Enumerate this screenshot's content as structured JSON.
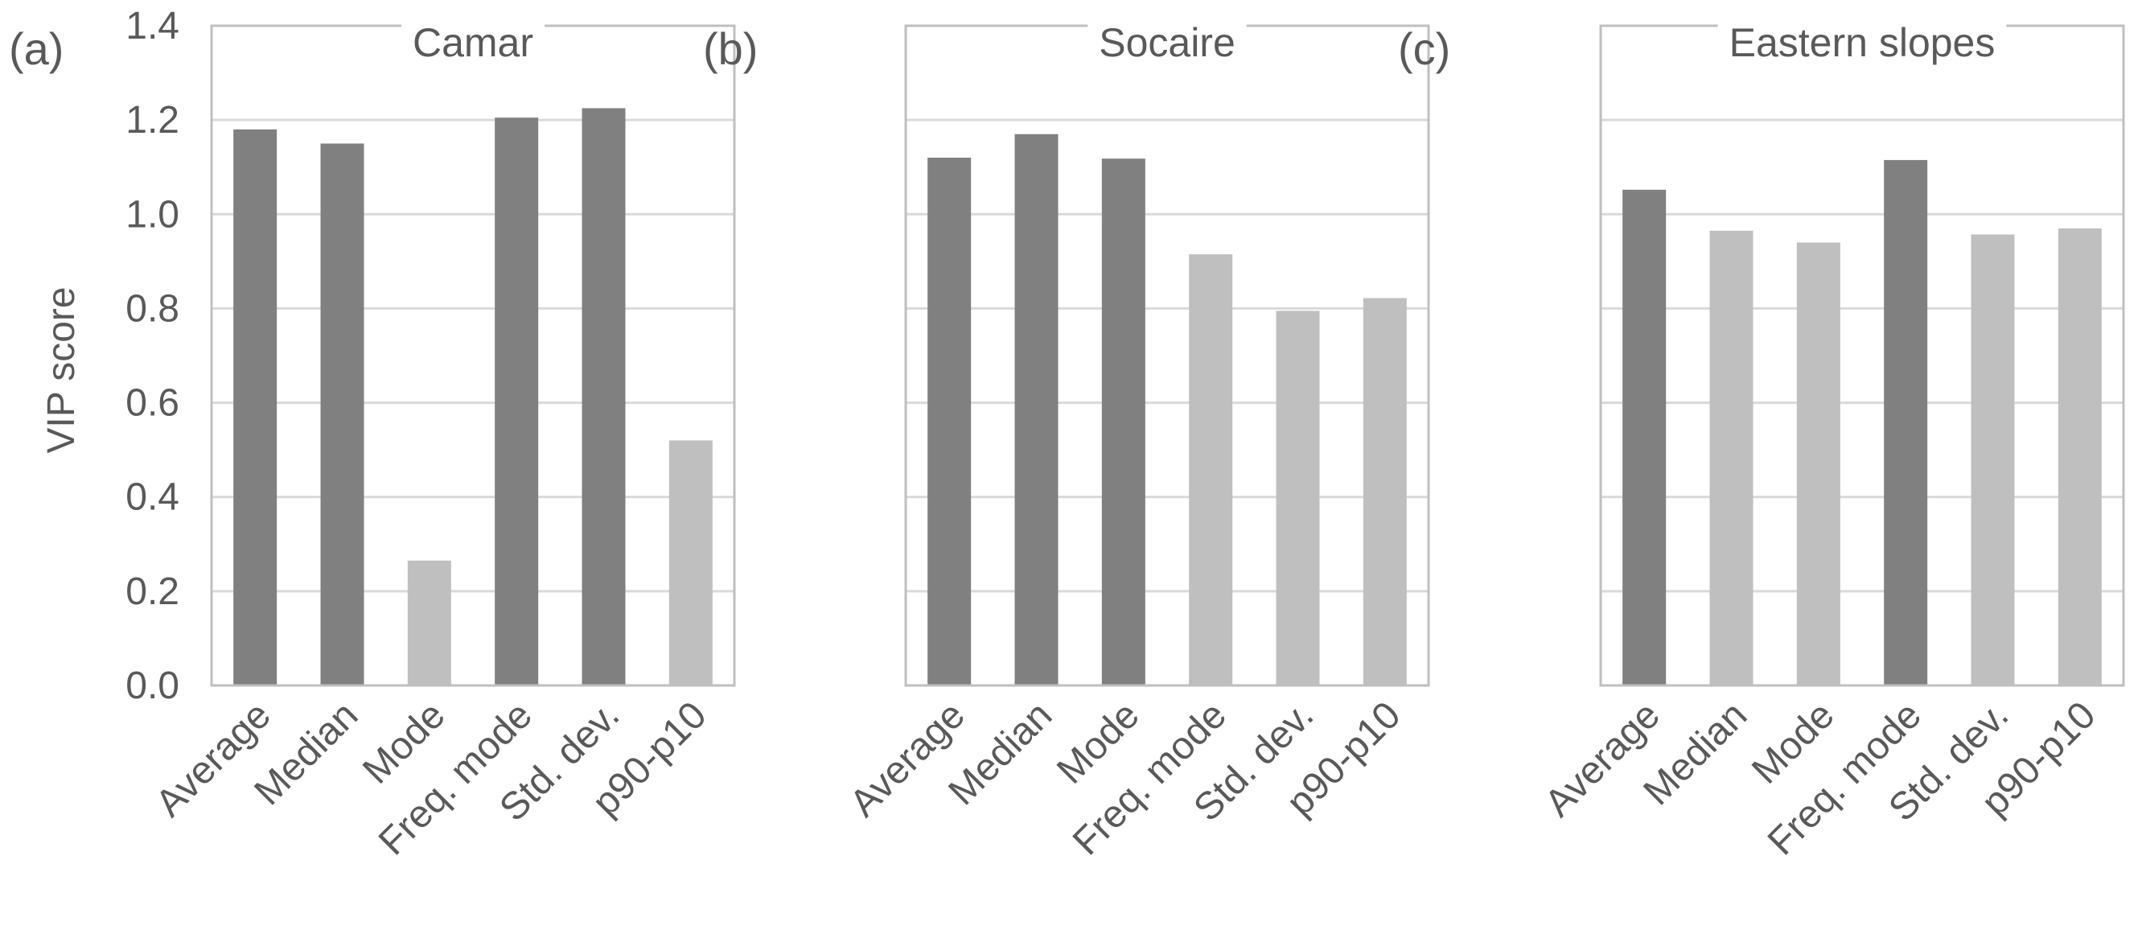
{
  "chart_data": [
    {
      "type": "bar",
      "panel_label": "(a)",
      "title": "Camar",
      "ylabel": "VIP score",
      "ylim": [
        0,
        1.4
      ],
      "yticks": [
        "0.0",
        "0.2",
        "0.4",
        "0.6",
        "0.8",
        "1.0",
        "1.2",
        "1.4"
      ],
      "categories": [
        "Average",
        "Median",
        "Mode",
        "Freq. mode",
        "Std. dev.",
        "p90-p10"
      ],
      "values": [
        1.18,
        1.15,
        0.265,
        1.205,
        1.225,
        0.52
      ],
      "important": [
        true,
        true,
        false,
        true,
        true,
        false
      ]
    },
    {
      "type": "bar",
      "panel_label": "(b)",
      "title": "Socaire",
      "ylim": [
        0,
        1.4
      ],
      "categories": [
        "Average",
        "Median",
        "Mode",
        "Freq. mode",
        "Std. dev.",
        "p90-p10"
      ],
      "values": [
        1.12,
        1.17,
        1.118,
        0.915,
        0.795,
        0.822
      ],
      "important": [
        true,
        true,
        true,
        false,
        false,
        false
      ]
    },
    {
      "type": "bar",
      "panel_label": "(c)",
      "title": "Eastern slopes",
      "ylim": [
        0,
        1.4
      ],
      "categories": [
        "Average",
        "Median",
        "Mode",
        "Freq. mode",
        "Std. dev.",
        "p90-p10"
      ],
      "values": [
        1.052,
        0.965,
        0.94,
        1.115,
        0.957,
        0.97
      ],
      "important": [
        true,
        false,
        false,
        true,
        false,
        false
      ]
    }
  ],
  "colors": {
    "important": "#808080",
    "not_important": "#bfbfbf"
  }
}
